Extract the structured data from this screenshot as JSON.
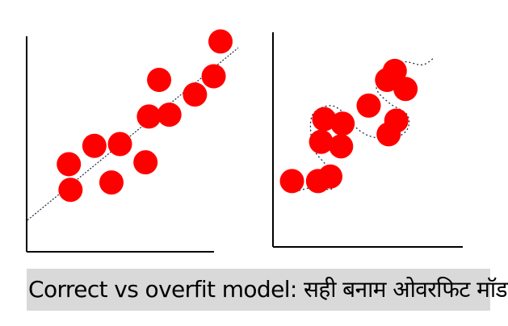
{
  "caption": "Correct vs overfit model: सही बनाम ओवरफिट मॉडल",
  "colors": {
    "point": "#ff0000",
    "axis": "#000000",
    "fit_line": "#1f2a44",
    "caption_bg": "#d9d9d9"
  },
  "chart_data": [
    {
      "type": "scatter",
      "title": "",
      "xlabel": "",
      "ylabel": "",
      "xlim": [
        0,
        100
      ],
      "ylim": [
        0,
        100
      ],
      "grid": false,
      "points": [
        {
          "x": 12,
          "y": 14
        },
        {
          "x": 11,
          "y": 28
        },
        {
          "x": 26,
          "y": 38
        },
        {
          "x": 36,
          "y": 18
        },
        {
          "x": 41,
          "y": 39
        },
        {
          "x": 56,
          "y": 29
        },
        {
          "x": 58,
          "y": 54
        },
        {
          "x": 64,
          "y": 74
        },
        {
          "x": 70,
          "y": 55
        },
        {
          "x": 85,
          "y": 66
        },
        {
          "x": 96,
          "y": 76
        },
        {
          "x": 100,
          "y": 95
        }
      ],
      "fit": {
        "kind": "linear",
        "from": [
          0,
          8
        ],
        "to": [
          100,
          88
        ]
      }
    },
    {
      "type": "scatter",
      "title": "",
      "xlabel": "",
      "ylabel": "",
      "xlim": [
        0,
        100
      ],
      "ylim": [
        0,
        100
      ],
      "grid": false,
      "points": [
        {
          "x": 5,
          "y": 18
        },
        {
          "x": 22,
          "y": 18
        },
        {
          "x": 30,
          "y": 21
        },
        {
          "x": 24,
          "y": 44
        },
        {
          "x": 26,
          "y": 59
        },
        {
          "x": 37,
          "y": 41
        },
        {
          "x": 38,
          "y": 56
        },
        {
          "x": 55,
          "y": 68
        },
        {
          "x": 68,
          "y": 49
        },
        {
          "x": 73,
          "y": 58
        },
        {
          "x": 67,
          "y": 85
        },
        {
          "x": 72,
          "y": 91
        },
        {
          "x": 79,
          "y": 79
        }
      ],
      "fit": {
        "kind": "overfit-curve",
        "path": [
          [
            7,
            11
          ],
          [
            20,
            14
          ],
          [
            31,
            13
          ],
          [
            28,
            27
          ],
          [
            19,
            40
          ],
          [
            18,
            61
          ],
          [
            30,
            68
          ],
          [
            40,
            62
          ],
          [
            45,
            55
          ],
          [
            55,
            48
          ],
          [
            70,
            46
          ],
          [
            80,
            52
          ],
          [
            80,
            62
          ],
          [
            68,
            70
          ],
          [
            60,
            80
          ],
          [
            66,
            93
          ],
          [
            78,
            97
          ],
          [
            90,
            95
          ],
          [
            98,
            100
          ]
        ]
      }
    }
  ]
}
